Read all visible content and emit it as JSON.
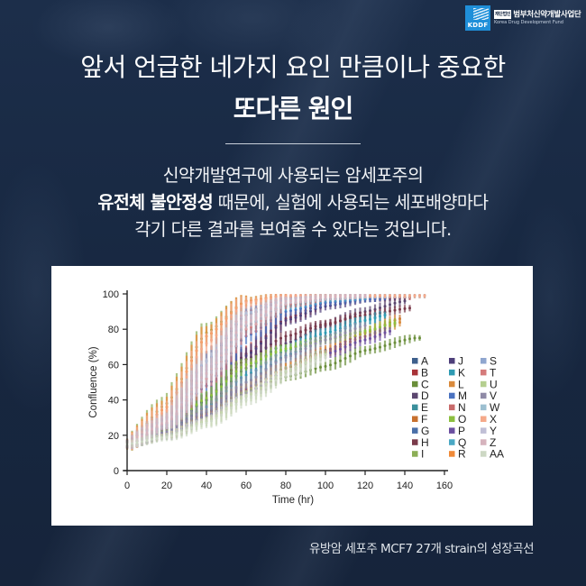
{
  "logo": {
    "mark_text": "KDDF",
    "org_name_ko": "범부처신약개발사업단",
    "org_tag": "재단법인",
    "org_name_en": "Korea Drug Development Fund"
  },
  "headline": {
    "line1": "앞서 언급한 네가지 요인 만큼이나 중요한",
    "line2": "또다른 원인"
  },
  "body": {
    "line1": "신약개발연구에 사용되는 암세포주의",
    "line2_bold": "유전체 불안정성",
    "line2_rest": " 때문에, 실험에 사용되는 세포배양마다",
    "line3": "각기 다른 결과를 보여줄 수 있다는 것입니다."
  },
  "caption": "유방암 세포주 MCF7 27개 strain의 성장곡선",
  "chart_data": {
    "type": "line",
    "title": "",
    "xlabel": "Time (hr)",
    "ylabel": "Confluence (%)",
    "xlim": [
      0,
      160
    ],
    "ylim": [
      0,
      100
    ],
    "xticks": [
      0,
      20,
      40,
      60,
      80,
      100,
      120,
      140,
      160
    ],
    "yticks": [
      0,
      20,
      40,
      60,
      80,
      100
    ],
    "grid": false,
    "error_bars": true,
    "legend_position": "right-inside, 3 columns",
    "series": [
      {
        "name": "A",
        "color": "#3d5f8c",
        "x": [
          0,
          20,
          40,
          60,
          80,
          100,
          120
        ],
        "values": [
          15,
          30,
          62,
          88,
          97,
          99,
          99
        ],
        "end_x": 120
      },
      {
        "name": "B",
        "color": "#a83338",
        "x": [
          0,
          20,
          40,
          60,
          80,
          100,
          120,
          140
        ],
        "values": [
          15,
          24,
          40,
          66,
          86,
          95,
          97,
          98
        ],
        "end_x": 143
      },
      {
        "name": "C",
        "color": "#6a8e3a",
        "x": [
          0,
          20,
          40,
          60,
          80,
          100,
          120,
          145
        ],
        "values": [
          15,
          22,
          33,
          45,
          53,
          59,
          68,
          75
        ],
        "end_x": 148
      },
      {
        "name": "D",
        "color": "#5b466f",
        "x": [
          0,
          20,
          40,
          60,
          80,
          100,
          120,
          140
        ],
        "values": [
          15,
          22,
          36,
          58,
          72,
          82,
          90,
          96
        ],
        "end_x": 140
      },
      {
        "name": "E",
        "color": "#3a8f9b",
        "x": [
          0,
          20,
          40,
          60,
          80,
          100,
          120,
          130
        ],
        "values": [
          15,
          22,
          34,
          50,
          65,
          76,
          85,
          88
        ],
        "end_x": 130
      },
      {
        "name": "F",
        "color": "#c7702e",
        "x": [
          0,
          20,
          40,
          60,
          80,
          100,
          120,
          138
        ],
        "values": [
          15,
          21,
          32,
          46,
          58,
          68,
          78,
          86
        ],
        "end_x": 138
      },
      {
        "name": "G",
        "color": "#4a6fa8",
        "x": [
          0,
          20,
          40,
          60,
          80,
          100,
          120
        ],
        "values": [
          15,
          28,
          55,
          82,
          94,
          97,
          98
        ],
        "end_x": 130
      },
      {
        "name": "H",
        "color": "#7a3a4a",
        "x": [
          0,
          20,
          40,
          60,
          80,
          100,
          120,
          143
        ],
        "values": [
          15,
          23,
          40,
          63,
          76,
          83,
          88,
          92
        ],
        "end_x": 143
      },
      {
        "name": "I",
        "color": "#8cae56",
        "x": [
          0,
          20,
          40,
          60,
          80,
          100
        ],
        "values": [
          15,
          38,
          78,
          96,
          99,
          99
        ],
        "end_x": 80
      },
      {
        "name": "J",
        "color": "#4e3f7a",
        "x": [
          0,
          20,
          40,
          60,
          80,
          100,
          120,
          140
        ],
        "values": [
          15,
          23,
          40,
          65,
          85,
          93,
          97,
          99
        ],
        "end_x": 140
      },
      {
        "name": "K",
        "color": "#2f9bb3",
        "x": [
          0,
          20,
          40,
          60,
          80,
          100,
          120,
          130
        ],
        "values": [
          15,
          23,
          36,
          54,
          68,
          78,
          85,
          88
        ],
        "end_x": 130
      },
      {
        "name": "L",
        "color": "#d98a3c",
        "x": [
          0,
          20,
          40,
          60,
          80,
          100,
          120,
          138
        ],
        "values": [
          15,
          21,
          32,
          46,
          58,
          67,
          76,
          84
        ],
        "end_x": 138
      },
      {
        "name": "M",
        "color": "#4a72c0",
        "x": [
          0,
          20,
          40,
          60,
          80,
          100,
          120,
          130
        ],
        "values": [
          15,
          26,
          48,
          76,
          90,
          95,
          97,
          98
        ],
        "end_x": 130
      },
      {
        "name": "N",
        "color": "#c86a6a",
        "x": [
          0,
          20,
          40,
          60,
          80,
          100
        ],
        "values": [
          15,
          30,
          62,
          90,
          98,
          99
        ],
        "end_x": 100
      },
      {
        "name": "O",
        "color": "#8cbf3f",
        "x": [
          0,
          20,
          40,
          60,
          80,
          100,
          120,
          137
        ],
        "values": [
          15,
          23,
          41,
          60,
          69,
          74,
          79,
          84
        ],
        "end_x": 137
      },
      {
        "name": "P",
        "color": "#6b4fa0",
        "x": [
          0,
          20,
          40,
          60,
          80,
          100,
          120,
          133
        ],
        "values": [
          15,
          20,
          31,
          44,
          56,
          66,
          74,
          79
        ],
        "end_x": 133
      },
      {
        "name": "Q",
        "color": "#4aa8c4",
        "x": [
          0,
          20,
          40,
          60,
          80,
          100,
          120
        ],
        "values": [
          15,
          28,
          55,
          82,
          93,
          97,
          98
        ],
        "end_x": 120
      },
      {
        "name": "R",
        "color": "#f08a38",
        "x": [
          0,
          20,
          40,
          60,
          80
        ],
        "values": [
          15,
          36,
          76,
          96,
          99
        ],
        "end_x": 80
      },
      {
        "name": "S",
        "color": "#8fa6cf",
        "x": [
          0,
          20,
          40,
          60,
          80,
          100,
          120,
          140,
          150
        ],
        "values": [
          15,
          30,
          62,
          89,
          97,
          99,
          99,
          99,
          99
        ],
        "end_x": 150
      },
      {
        "name": "T",
        "color": "#d57b7b",
        "x": [
          0,
          20,
          40,
          60,
          80,
          100,
          120
        ],
        "values": [
          15,
          27,
          52,
          80,
          94,
          98,
          99
        ],
        "end_x": 120
      },
      {
        "name": "U",
        "color": "#b5cf8f",
        "x": [
          0,
          20,
          40,
          60,
          80,
          100
        ],
        "values": [
          15,
          20,
          28,
          42,
          56,
          66
        ],
        "end_x": 100
      },
      {
        "name": "V",
        "color": "#8f8aa6",
        "x": [
          0,
          20,
          40,
          60,
          80,
          100,
          120
        ],
        "values": [
          15,
          22,
          34,
          50,
          64,
          74,
          82
        ],
        "end_x": 120
      },
      {
        "name": "W",
        "color": "#9cbfd0",
        "x": [
          0,
          20,
          40,
          60,
          80,
          100,
          120,
          150
        ],
        "values": [
          15,
          29,
          58,
          86,
          96,
          99,
          99,
          99
        ],
        "end_x": 150
      },
      {
        "name": "X",
        "color": "#f5a98a",
        "x": [
          0,
          20,
          40,
          60,
          80,
          100,
          120,
          150
        ],
        "values": [
          15,
          34,
          72,
          95,
          99,
          99,
          99,
          99
        ],
        "end_x": 152
      },
      {
        "name": "Y",
        "color": "#c0bfd6",
        "x": [
          0,
          20,
          40,
          60,
          80,
          100,
          120
        ],
        "values": [
          15,
          28,
          58,
          86,
          96,
          98,
          99
        ],
        "end_x": 120
      },
      {
        "name": "Z",
        "color": "#d6b3bd",
        "x": [
          0,
          20,
          40,
          60,
          80,
          100,
          120
        ],
        "values": [
          15,
          28,
          55,
          84,
          96,
          98,
          99
        ],
        "end_x": 120
      },
      {
        "name": "AA",
        "color": "#cdd8c4",
        "x": [
          0,
          20,
          40,
          60,
          80,
          100
        ],
        "values": [
          15,
          19,
          27,
          40,
          54,
          64
        ],
        "end_x": 100
      }
    ]
  }
}
